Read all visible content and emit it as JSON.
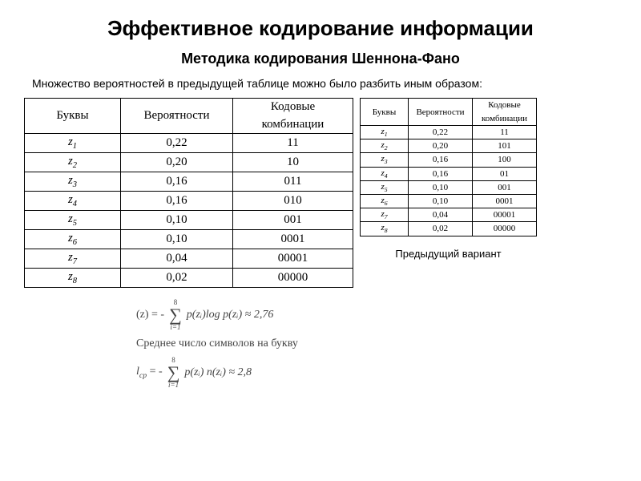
{
  "title": "Эффективное кодирование информации",
  "subtitle": "Методика кодирования Шеннона-Фано",
  "intro": "Множество вероятностей в предыдущей таблице можно было разбить иным образом:",
  "prev_caption": "Предыдущий вариант",
  "table_big": {
    "headers": {
      "c1": "Буквы",
      "c2": "Вероятности",
      "c3a": "Кодовые",
      "c3b": "комбинации"
    },
    "rows": [
      {
        "z": "z",
        "i": "1",
        "p": "0,22",
        "code": "11"
      },
      {
        "z": "z",
        "i": "2",
        "p": "0,20",
        "code": "10"
      },
      {
        "z": "z",
        "i": "3",
        "p": "0,16",
        "code": "011"
      },
      {
        "z": "z",
        "i": "4",
        "p": "0,16",
        "code": "010"
      },
      {
        "z": "z",
        "i": "5",
        "p": "0,10",
        "code": "001"
      },
      {
        "z": "z",
        "i": "6",
        "p": "0,10",
        "code": "0001"
      },
      {
        "z": "z",
        "i": "7",
        "p": "0,04",
        "code": "00001"
      },
      {
        "z": "z",
        "i": "8",
        "p": "0,02",
        "code": "00000"
      }
    ]
  },
  "table_small": {
    "headers": {
      "c1": "Буквы",
      "c2": "Вероятности",
      "c3a": "Кодовые",
      "c3b": "комбинации"
    },
    "rows": [
      {
        "z": "z",
        "i": "1",
        "p": "0,22",
        "code": "11"
      },
      {
        "z": "z",
        "i": "2",
        "p": "0,20",
        "code": "101"
      },
      {
        "z": "z",
        "i": "3",
        "p": "0,16",
        "code": "100"
      },
      {
        "z": "z",
        "i": "4",
        "p": "0,16",
        "code": "01"
      },
      {
        "z": "z",
        "i": "5",
        "p": "0,10",
        "code": "001"
      },
      {
        "z": "z",
        "i": "6",
        "p": "0,10",
        "code": "0001"
      },
      {
        "z": "z",
        "i": "7",
        "p": "0,04",
        "code": "00001"
      },
      {
        "z": "z",
        "i": "8",
        "p": "0,02",
        "code": "00000"
      }
    ]
  },
  "math": {
    "entropy_lhs": "(z) = -",
    "sum_top": "8",
    "sum_bot": "i=1",
    "entropy_expr": "p(zᵢ)log p(zᵢ) ≈ 2,76",
    "avg_label": "Среднее число символов на букву",
    "lcp_lhs": "l",
    "lcp_sub": "ср",
    "lcp_eq": " = -",
    "lcp_expr": "p(zᵢ) n(zᵢ) ≈ 2,8"
  }
}
